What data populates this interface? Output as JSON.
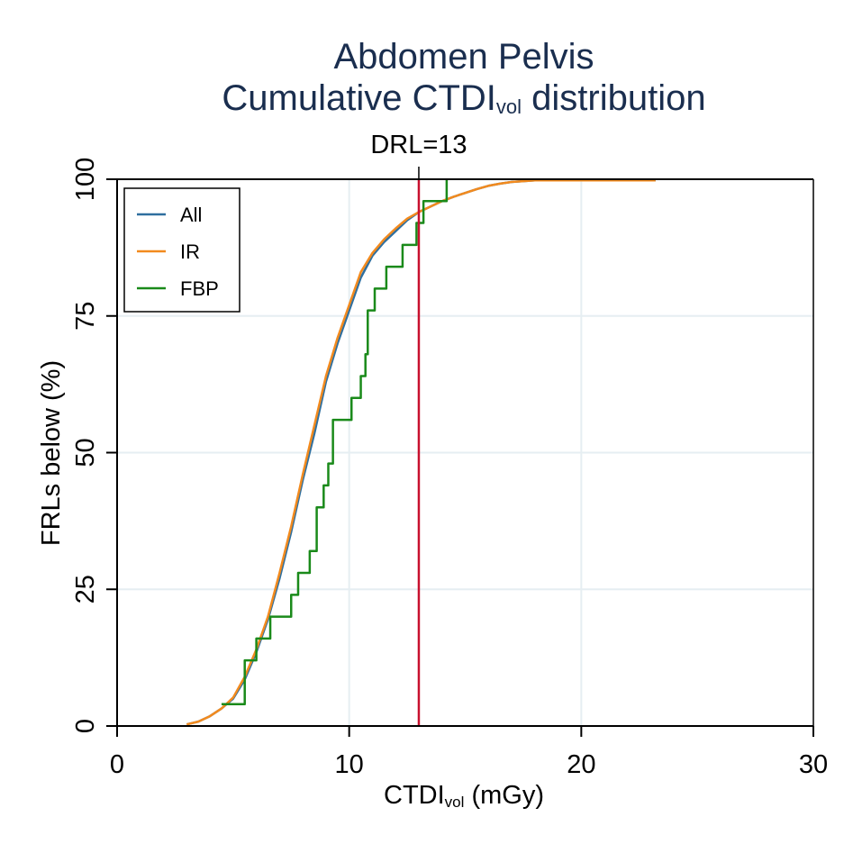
{
  "chart_data": {
    "type": "line",
    "title_line1": "Abdomen Pelvis",
    "title_line2_main": "Cumulative CTDI",
    "title_line2_sub": "vol",
    "title_line2_tail": " distribution",
    "xlabel_main": "CTDI",
    "xlabel_sub": "vol",
    "xlabel_tail": " (mGy)",
    "ylabel": "FRLs below (%)",
    "xlim": [
      0,
      30
    ],
    "ylim": [
      0,
      100
    ],
    "xticks": [
      0,
      10,
      20,
      30
    ],
    "yticks": [
      0,
      25,
      50,
      75,
      100
    ],
    "xtick_labels": [
      "0",
      "10",
      "20",
      "30"
    ],
    "ytick_labels": [
      "0",
      "25",
      "50",
      "75",
      "100"
    ],
    "grid": true,
    "legend_position": "top-left",
    "reference_line": {
      "x": 13,
      "label": "DRL=13",
      "color": "#c8102e"
    },
    "series": [
      {
        "name": "All",
        "color": "#2f6f9f",
        "step": false,
        "x": [
          3.0,
          3.5,
          4.0,
          4.5,
          5.0,
          5.5,
          6.0,
          6.5,
          7.0,
          7.5,
          8.0,
          8.5,
          9.0,
          9.5,
          10.0,
          10.5,
          11.0,
          11.5,
          12.0,
          12.5,
          13.0,
          13.5,
          14.0,
          14.5,
          15.0,
          15.5,
          16.0,
          16.5,
          17.0,
          18.0,
          19.0,
          20.0,
          21.0,
          22.0,
          23.2
        ],
        "y": [
          0.3,
          0.8,
          1.8,
          3.2,
          5.0,
          8.5,
          13.5,
          19.5,
          27.0,
          35.5,
          45.0,
          53.5,
          63.0,
          70.0,
          76.0,
          82.0,
          86.0,
          88.5,
          90.5,
          92.5,
          94.0,
          95.0,
          96.0,
          96.8,
          97.5,
          98.2,
          98.8,
          99.2,
          99.5,
          99.8,
          99.8,
          99.8,
          99.8,
          99.8,
          99.8
        ]
      },
      {
        "name": "IR",
        "color": "#f28a1e",
        "step": false,
        "x": [
          3.0,
          3.5,
          4.0,
          4.5,
          5.0,
          5.5,
          6.0,
          6.5,
          7.0,
          7.5,
          8.0,
          8.5,
          9.0,
          9.5,
          10.0,
          10.5,
          11.0,
          11.5,
          12.0,
          12.5,
          13.0,
          13.5,
          14.0,
          14.5,
          15.0,
          15.5,
          16.0,
          16.5,
          17.0,
          18.0,
          19.0,
          20.0,
          21.0,
          22.0,
          23.2
        ],
        "y": [
          0.3,
          0.8,
          1.8,
          3.2,
          5.2,
          9.0,
          14.0,
          20.0,
          28.0,
          36.5,
          46.0,
          55.0,
          64.0,
          71.0,
          77.0,
          83.0,
          86.5,
          89.0,
          91.0,
          92.8,
          94.0,
          95.0,
          96.0,
          96.8,
          97.5,
          98.2,
          98.8,
          99.2,
          99.5,
          99.8,
          99.8,
          99.8,
          99.8,
          99.8,
          99.8
        ]
      },
      {
        "name": "FBP",
        "color": "#1a8a1a",
        "step": true,
        "x": [
          4.5,
          5.5,
          6.0,
          6.6,
          7.0,
          7.5,
          7.8,
          8.3,
          8.6,
          8.9,
          9.1,
          9.3,
          9.6,
          10.1,
          10.5,
          10.7,
          10.8,
          11.1,
          11.6,
          12.3,
          12.9,
          13.2,
          14.2
        ],
        "y": [
          4,
          12,
          16,
          20,
          20,
          24,
          28,
          32,
          40,
          44,
          48,
          56,
          56,
          60,
          64,
          68,
          76,
          80,
          84,
          88,
          92,
          96,
          100
        ]
      }
    ]
  }
}
